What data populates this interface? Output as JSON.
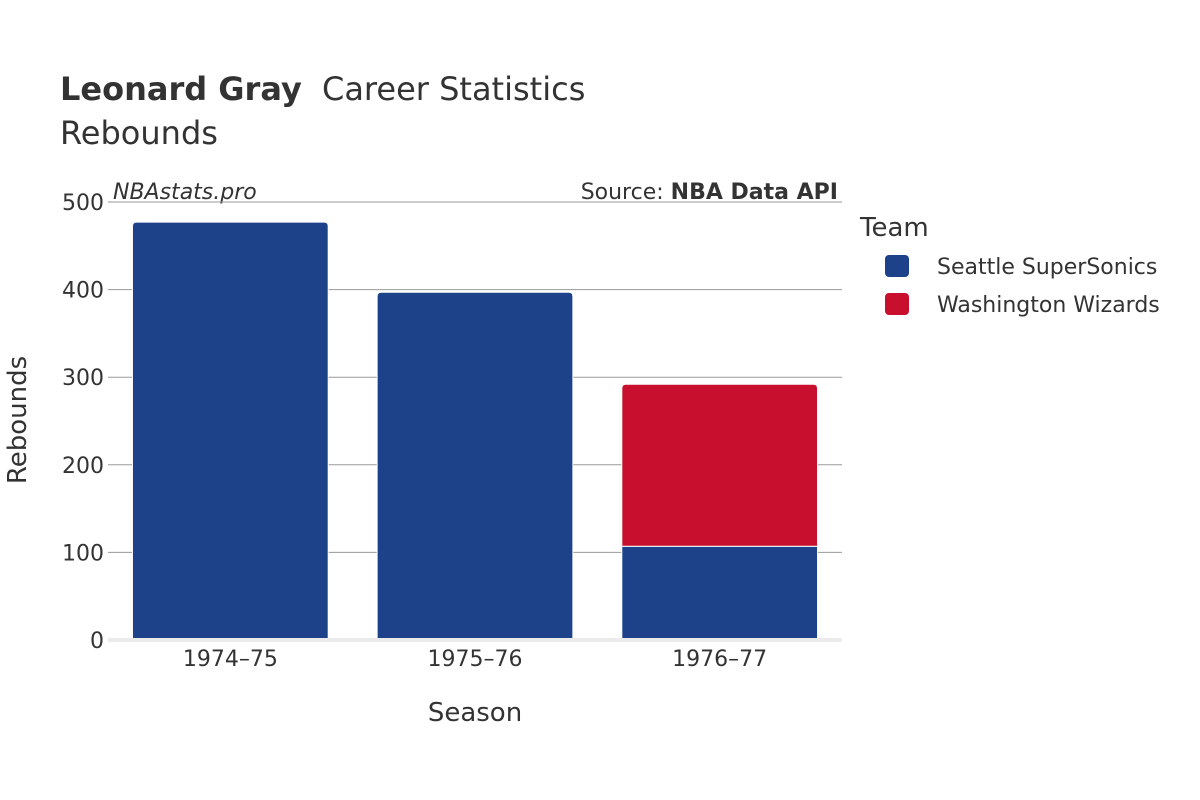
{
  "header": {
    "player_name": "Leonard Gray",
    "title_rest": "Career Statistics",
    "subtitle": "Rebounds",
    "watermark": "NBAstats.pro",
    "source_label": "Source: ",
    "source_name": "NBA Data API"
  },
  "legend": {
    "title": "Team"
  },
  "chart_data": {
    "type": "bar",
    "stacked": true,
    "categories": [
      "1974–75",
      "1975–76",
      "1976–77"
    ],
    "series": [
      {
        "name": "Seattle SuperSonics",
        "color": "#1d428a",
        "values": [
          477,
          397,
          107
        ]
      },
      {
        "name": "Washington Wizards",
        "color": "#c8102e",
        "values": [
          0,
          0,
          185
        ]
      }
    ],
    "xlabel": "Season",
    "ylabel": "Rebounds",
    "ylim": [
      0,
      500
    ],
    "yticks": [
      0,
      100,
      200,
      300,
      400,
      500
    ],
    "grid": true,
    "legend_position": "right"
  }
}
